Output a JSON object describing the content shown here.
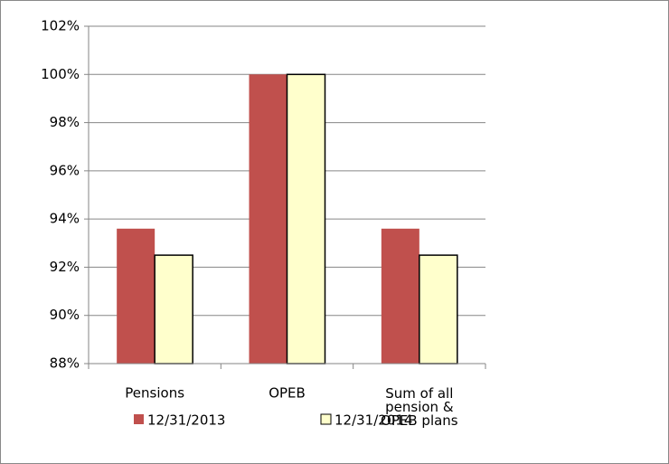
{
  "chart_data": {
    "type": "bar",
    "categories": [
      "Pensions",
      "OPEB",
      "Sum of all pension & OPEB plans"
    ],
    "series": [
      {
        "name": "12/31/2013",
        "color": "#c0504d",
        "values": [
          93.6,
          100,
          93.6
        ]
      },
      {
        "name": "12/31/2014",
        "color": "#ffffcc",
        "values": [
          92.5,
          100,
          92.5
        ]
      }
    ],
    "ylim": [
      88,
      102
    ],
    "yticks": [
      {
        "value": 88,
        "label": "88%"
      },
      {
        "value": 90,
        "label": "90%"
      },
      {
        "value": 92,
        "label": "92%"
      },
      {
        "value": 94,
        "label": "94%"
      },
      {
        "value": 96,
        "label": "96%"
      },
      {
        "value": 98,
        "label": "98%"
      },
      {
        "value": 100,
        "label": "100%"
      },
      {
        "value": 102,
        "label": "102%"
      }
    ],
    "grid": true,
    "legend": "bottom"
  }
}
